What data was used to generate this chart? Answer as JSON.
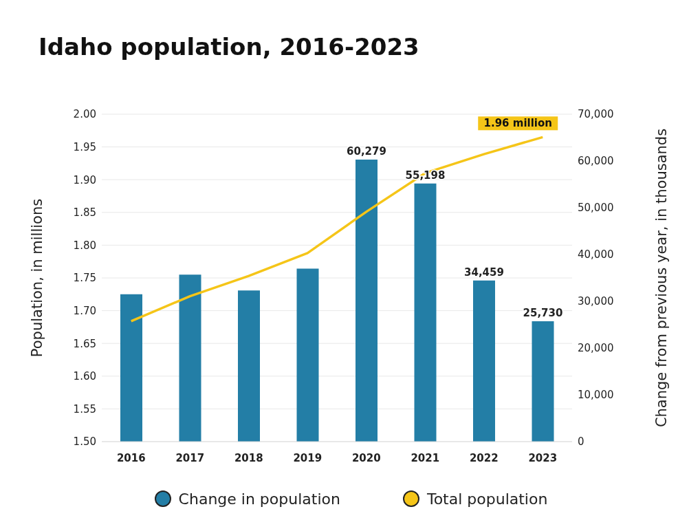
{
  "chart_data": {
    "type": "bar",
    "title": "Idaho population, 2016-2023",
    "ylabel": "Population, in millions",
    "y2label": "Change from previous year, in thousands",
    "categories": [
      "2016",
      "2017",
      "2018",
      "2019",
      "2020",
      "2021",
      "2022",
      "2023"
    ],
    "series": [
      {
        "name": "Change in population",
        "axis": "y2",
        "color": "#237ea6",
        "values": [
          31500,
          35700,
          32300,
          37000,
          60279,
          55198,
          34459,
          25730
        ],
        "value_labels": [
          null,
          null,
          null,
          null,
          "60,279",
          "55,198",
          "34,459",
          "25,730"
        ]
      },
      {
        "name": "Total population",
        "type": "line",
        "color": "#f5c518",
        "values": [
          1.684,
          1.722,
          1.753,
          1.788,
          1.851,
          1.91,
          1.939,
          1.965
        ]
      }
    ],
    "annotations": [
      {
        "text": "1.96 million",
        "x": "2023",
        "y": 1.965
      }
    ],
    "ylim": [
      1.5,
      2.0
    ],
    "yticks": [
      {
        "value": 1.5,
        "label": "1.50"
      },
      {
        "value": 1.55,
        "label": "1.55"
      },
      {
        "value": 1.6,
        "label": "1.60"
      },
      {
        "value": 1.65,
        "label": "1.65"
      },
      {
        "value": 1.7,
        "label": "1.70"
      },
      {
        "value": 1.75,
        "label": "1.75"
      },
      {
        "value": 1.8,
        "label": "1.80"
      },
      {
        "value": 1.85,
        "label": "1.85"
      },
      {
        "value": 1.9,
        "label": "1.90"
      },
      {
        "value": 1.95,
        "label": "1.95"
      },
      {
        "value": 2.0,
        "label": "2.00"
      }
    ],
    "y2lim": [
      0,
      70000
    ],
    "y2ticks": [
      0,
      {
        "value": 10000,
        "label": "10,000"
      },
      {
        "value": 20000,
        "label": "20,000"
      },
      {
        "value": 30000,
        "label": "30,000"
      },
      {
        "value": 40000,
        "label": "40,000"
      },
      {
        "value": 50000,
        "label": "50,000"
      },
      {
        "value": 60000,
        "label": "60,000"
      },
      {
        "value": 70000,
        "label": "70,000"
      }
    ],
    "grid": "y",
    "legend": "bottom",
    "marker": "none",
    "line_style": "solid"
  }
}
